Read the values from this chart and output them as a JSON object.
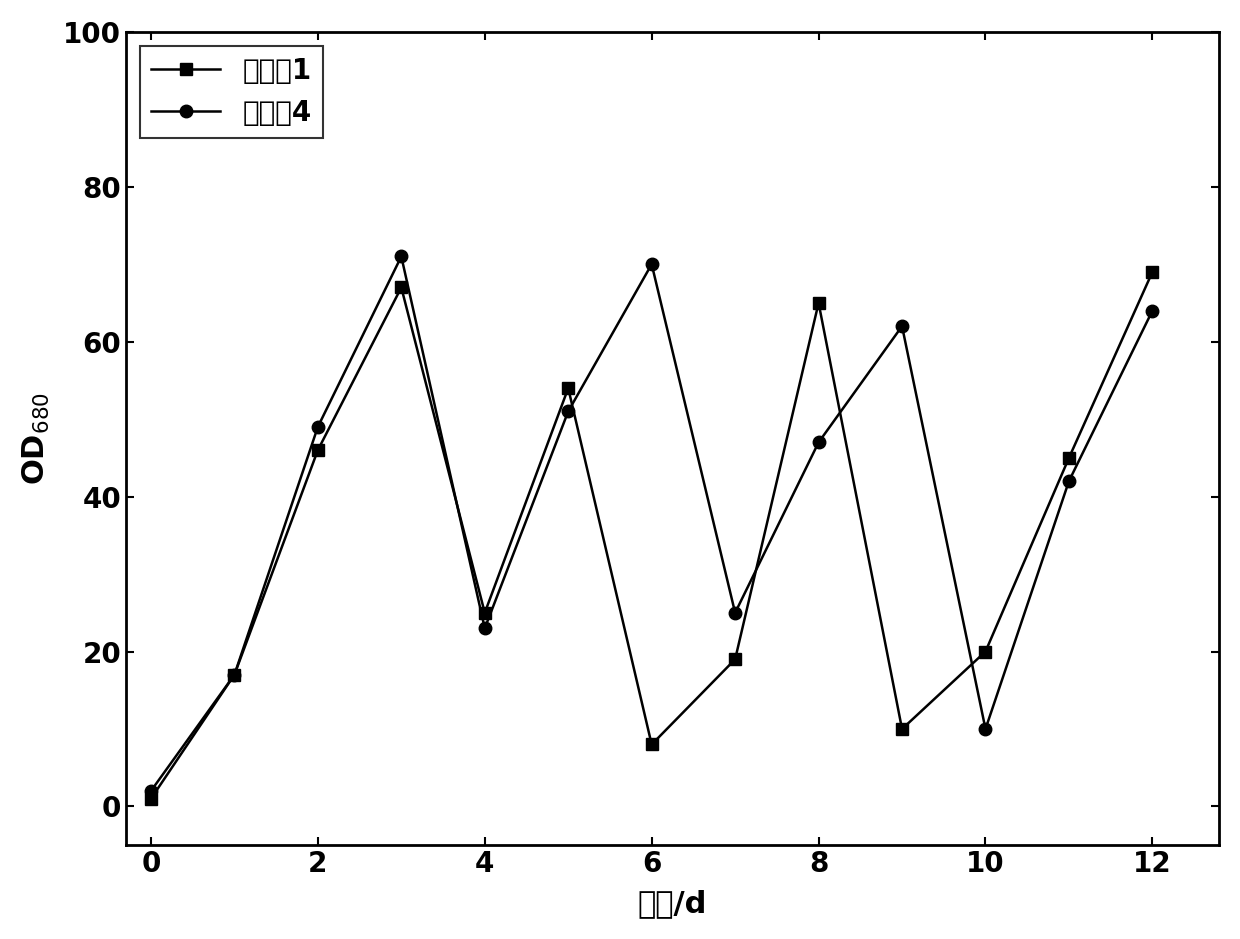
{
  "series1_label": "实施兠1",
  "series2_label": "实施兠4",
  "series1_x": [
    0,
    1,
    2,
    3,
    4,
    5,
    6,
    7,
    8,
    9,
    10,
    11,
    12
  ],
  "series1_y": [
    1,
    17,
    46,
    67,
    25,
    54,
    8,
    19,
    65,
    10,
    20,
    45,
    69
  ],
  "series2_x": [
    0,
    1,
    2,
    3,
    4,
    5,
    6,
    7,
    8,
    9,
    10,
    11,
    12
  ],
  "series2_y": [
    2,
    17,
    49,
    71,
    23,
    51,
    70,
    25,
    47,
    62,
    10,
    42,
    64
  ],
  "xlabel": "时间/d",
  "ylabel": "OD",
  "ylabel_sub": "680",
  "xlim": [
    -0.3,
    12.8
  ],
  "ylim": [
    -5,
    100
  ],
  "xticks": [
    0,
    2,
    4,
    6,
    8,
    10,
    12
  ],
  "yticks": [
    0,
    20,
    40,
    60,
    80,
    100
  ],
  "line_color": "#000000",
  "marker1": "s",
  "marker2": "o",
  "markersize": 9,
  "linewidth": 1.8,
  "legend_loc": "upper left",
  "label_fontsize": 22,
  "tick_fontsize": 20,
  "legend_fontsize": 20,
  "figure_facecolor": "#ffffff",
  "axes_facecolor": "#ffffff"
}
